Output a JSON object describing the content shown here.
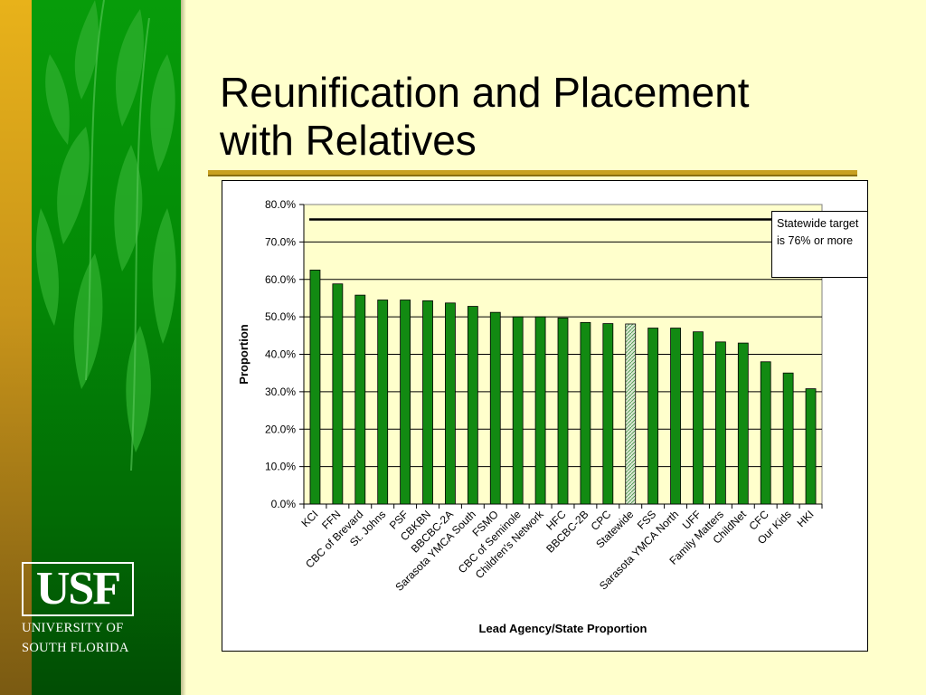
{
  "slide": {
    "title_lines": [
      "Reunification and Placement",
      "with Relatives"
    ]
  },
  "logo": {
    "mark": "USF",
    "line1": "UNIVERSITY OF",
    "line2": "SOUTH FLORIDA"
  },
  "colors": {
    "background": "#ffffcc",
    "bar": "#128a12",
    "statewide_bar": "#dde8d6",
    "plot_area": "#ffffcc",
    "target_line": "#000000",
    "green_band": "#038a06",
    "gold": "#c8a020"
  },
  "chart_data": {
    "type": "bar",
    "xlabel": "Lead Agency/State Proportion",
    "ylabel": "Proportion",
    "ylim": [
      0,
      80
    ],
    "ytick_step": 10,
    "ytick_labels": [
      "0.0%",
      "10.0%",
      "20.0%",
      "30.0%",
      "40.0%",
      "50.0%",
      "60.0%",
      "70.0%",
      "80.0%"
    ],
    "grid": true,
    "highlight_category": "Statewide",
    "categories": [
      "KCI",
      "FFN",
      "CBC of Brevard",
      "St. Johns",
      "PSF",
      "CBKBN",
      "BBCBC-2A",
      "Sarasota YMCA South",
      "FSMO",
      "CBC of Seminole",
      "Children's Network",
      "HFC",
      "BBCBC-2B",
      "CPC",
      "Statewide",
      "FSS",
      "Sarasota YMCA North",
      "UFF",
      "Family Matters",
      "ChildNet",
      "CFC",
      "Our Kids",
      "HKI"
    ],
    "values": [
      62.5,
      58.8,
      55.8,
      54.5,
      54.5,
      54.3,
      53.7,
      52.8,
      51.2,
      50.0,
      50.0,
      49.7,
      48.5,
      48.2,
      48.1,
      47.0,
      47.0,
      46.0,
      43.3,
      43.0,
      38.0,
      35.0,
      30.8
    ],
    "target_value": 76,
    "annotation_lines": [
      "Statewide target",
      "is 76% or more"
    ]
  }
}
